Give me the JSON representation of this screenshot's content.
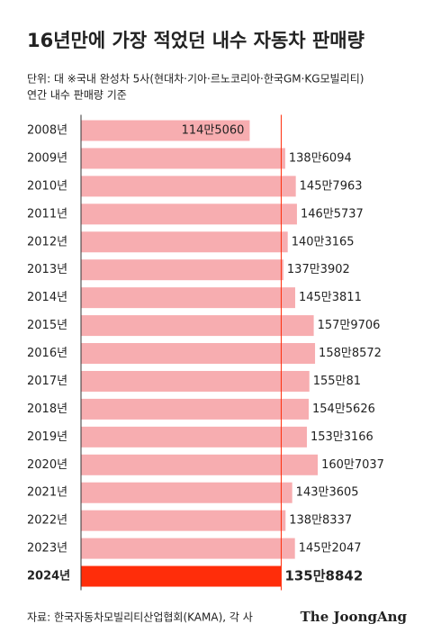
{
  "chart_data": {
    "type": "bar",
    "orientation": "horizontal",
    "title": "16년만에 가장 적었던 내수 자동차 판매량",
    "subtitle": [
      "단위: 대 ※국내 완성차 5사(현대차·기아·르노코리아·한국GM·KG모빌리티)",
      "연간 내수 판매량 기준"
    ],
    "categories": [
      "2008년",
      "2009년",
      "2010년",
      "2011년",
      "2012년",
      "2013년",
      "2014년",
      "2015년",
      "2016년",
      "2017년",
      "2018년",
      "2019년",
      "2020년",
      "2021년",
      "2022년",
      "2023년",
      "2024년"
    ],
    "values": [
      1145060,
      1386094,
      1457963,
      1465737,
      1403165,
      1373902,
      1453811,
      1579706,
      1588572,
      1550081,
      1545626,
      1533166,
      1607037,
      1433605,
      1388337,
      1452047,
      1358842
    ],
    "value_labels": [
      "114만5060",
      "138만6094",
      "145만7963",
      "146만5737",
      "140만3165",
      "137만3902",
      "145만3811",
      "157만9706",
      "158만8572",
      "155만81",
      "154만5626",
      "153만3166",
      "160만7037",
      "143만3605",
      "138만8337",
      "145만2047",
      "135만8842"
    ],
    "colors": [
      "#f7adb0",
      "#f7adb0",
      "#f7adb0",
      "#f7adb0",
      "#f7adb0",
      "#f7adb0",
      "#f7adb0",
      "#f7adb0",
      "#f7adb0",
      "#f7adb0",
      "#f7adb0",
      "#f7adb0",
      "#f7adb0",
      "#f7adb0",
      "#f7adb0",
      "#f7adb0",
      "#ff2d0a"
    ],
    "source": "자료: 한국자동차모빌리티산업협회(KAMA), 각 사",
    "logo": "The JoongAng"
  }
}
